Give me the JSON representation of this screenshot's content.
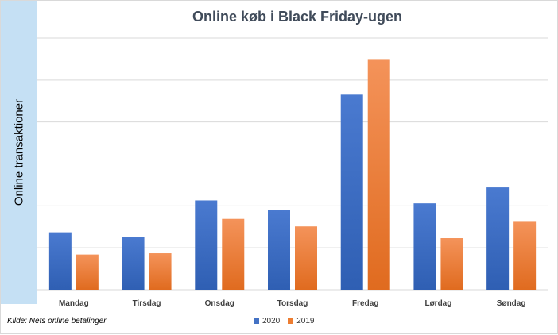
{
  "chart_data": {
    "type": "bar",
    "title": "Online køb i Black Friday-ugen",
    "ylabel": "Online transaktioner",
    "xlabel": "",
    "categories": [
      "Mandag",
      "Tirsdag",
      "Onsdag",
      "Torsdag",
      "Fredag",
      "Lørdag",
      "Søndag"
    ],
    "series": [
      {
        "name": "2020",
        "color": "#4472c4",
        "values": [
          1.37,
          1.26,
          2.13,
          1.9,
          4.65,
          2.06,
          2.44
        ]
      },
      {
        "name": "2019",
        "color": "#ed7d31",
        "values": [
          0.84,
          0.87,
          1.69,
          1.51,
          5.5,
          1.23,
          1.62
        ]
      }
    ],
    "ylim": [
      0,
      6
    ],
    "grid": true,
    "legend_position": "bottom"
  },
  "source_note": "Kilde: Nets online betalinger"
}
